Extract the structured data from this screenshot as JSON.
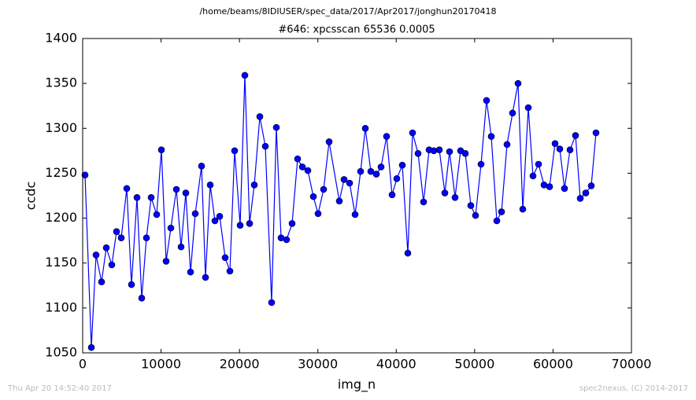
{
  "chart_data": {
    "type": "line",
    "suptitle": "/home/beams/8IDIUSER/spec_data/2017/Apr2017/jonghun20170418",
    "title": "#646: xpcsscan 65536 0.0005",
    "xlabel": "img_n",
    "ylabel": "ccdc",
    "footer_left": "Thu Apr 20 14:52:40 2017",
    "footer_right": "spec2nexus, (C) 2014-2017",
    "xlim": [
      0,
      70000
    ],
    "xticks": [
      0,
      10000,
      20000,
      30000,
      40000,
      50000,
      60000,
      70000
    ],
    "ylim": [
      1050,
      1400
    ],
    "yticks": [
      1050,
      1100,
      1150,
      1200,
      1250,
      1300,
      1350,
      1400
    ],
    "x": [
      301,
      1105,
      1707,
      2410,
      3013,
      3716,
      4318,
      4921,
      5624,
      6227,
      6930,
      7532,
      8135,
      8737,
      9440,
      10043,
      10646,
      11248,
      11951,
      12554,
      13156,
      13759,
      14361,
      15165,
      15667,
      16270,
      16872,
      17475,
      18178,
      18780,
      19383,
      20086,
      20689,
      21291,
      21894,
      22597,
      23300,
      24103,
      24706,
      25308,
      26011,
      26714,
      27417,
      28020,
      28723,
      29426,
      30029,
      30732,
      31435,
      32740,
      33343,
      34046,
      34749,
      35452,
      36054,
      36757,
      37460,
      38063,
      38766,
      39469,
      40072,
      40775,
      41478,
      42080,
      42783,
      43486,
      44189,
      44792,
      45495,
      46198,
      46800,
      47503,
      48206,
      48809,
      49512,
      50114,
      50817,
      51520,
      52123,
      52826,
      53428,
      54131,
      54834,
      55537,
      56140,
      56843,
      57445,
      58148,
      58851,
      59554,
      60257,
      60860,
      61462,
      62165,
      62868,
      63471,
      64174,
      64877,
      65479
    ],
    "series": [
      {
        "name": "ccdc",
        "color": "#0000ff",
        "values": [
          1248,
          1056,
          1159,
          1129,
          1167,
          1148,
          1185,
          1178,
          1233,
          1126,
          1223,
          1111,
          1178,
          1223,
          1204,
          1276,
          1152,
          1189,
          1232,
          1168,
          1228,
          1140,
          1205,
          1258,
          1134,
          1237,
          1197,
          1202,
          1156,
          1141,
          1275,
          1192,
          1359,
          1194,
          1237,
          1313,
          1280,
          1106,
          1301,
          1178,
          1176,
          1194,
          1266,
          1257,
          1253,
          1224,
          1205,
          1232,
          1285,
          1219,
          1243,
          1239,
          1204,
          1252,
          1300,
          1252,
          1249,
          1257,
          1291,
          1226,
          1244,
          1259,
          1161,
          1295,
          1272,
          1218,
          1276,
          1275,
          1276,
          1228,
          1274,
          1223,
          1275,
          1272,
          1214,
          1203,
          1260,
          1331,
          1291,
          1197,
          1207,
          1282,
          1317,
          1350,
          1210,
          1323,
          1247,
          1260,
          1237,
          1235,
          1283,
          1277,
          1233,
          1276,
          1292,
          1222,
          1228,
          1236,
          1295
        ]
      }
    ]
  }
}
